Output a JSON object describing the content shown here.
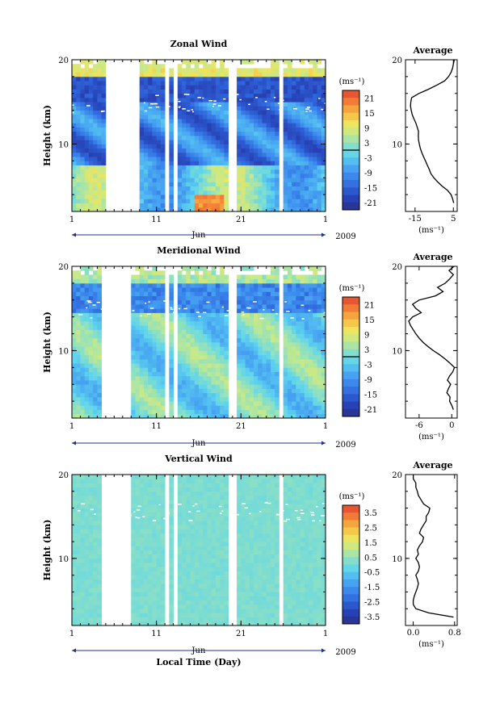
{
  "chart_data": [
    {
      "type": "heatmap",
      "title": "Zonal Wind",
      "ylabel": "Height (km)",
      "ylim": [
        2,
        20
      ],
      "y_ticks": [
        "10",
        "20"
      ],
      "x_ticks": [
        "1",
        "11",
        "21",
        "1"
      ],
      "x_month": "Jun",
      "x_year": "2009",
      "colorbar": {
        "unit": "(ms⁻¹)",
        "tick_labels": [
          "21",
          "15",
          "9",
          "3",
          "-3",
          "-9",
          "-15",
          "-21"
        ],
        "range": [
          -24,
          24
        ]
      },
      "data_gaps_days": [
        [
          5,
          9
        ],
        [
          12,
          12.3
        ],
        [
          13.2,
          13.5
        ],
        [
          19.8,
          20.3
        ],
        [
          25.5,
          25.8
        ]
      ],
      "average_profile": {
        "title": "Average",
        "xlabel": "(ms⁻¹)",
        "x_ticks": [
          "-15",
          "5"
        ],
        "xlim": [
          -20,
          7
        ],
        "y_ticks": [
          "10",
          "20"
        ],
        "height_km": [
          3.0,
          3.5,
          4.0,
          4.5,
          5.0,
          5.5,
          6.0,
          6.5,
          7.0,
          7.5,
          8.0,
          8.5,
          9.0,
          9.5,
          10.0,
          10.5,
          11.0,
          11.5,
          12.0,
          12.5,
          13.0,
          13.5,
          14.0,
          14.5,
          15.0,
          15.5,
          16.0,
          16.5,
          17.0,
          17.5,
          18.0,
          18.5,
          19.0,
          19.5,
          20.0
        ],
        "values": [
          5.2,
          4.6,
          3.8,
          2.0,
          -0.8,
          -3.2,
          -5.2,
          -6.8,
          -7.6,
          -8.6,
          -9.6,
          -10.6,
          -11.5,
          -12.3,
          -12.8,
          -13.2,
          -13.3,
          -13.2,
          -13.9,
          -14.6,
          -15.6,
          -16.5,
          -17.0,
          -17.4,
          -17.2,
          -16.8,
          -13.0,
          -8.0,
          -3.5,
          0.5,
          2.5,
          3.8,
          4.6,
          5.0,
          5.5
        ]
      }
    },
    {
      "type": "heatmap",
      "title": "Meridional Wind",
      "ylabel": "Height (km)",
      "ylim": [
        2,
        20
      ],
      "y_ticks": [
        "10",
        "20"
      ],
      "x_ticks": [
        "1",
        "11",
        "21",
        "1"
      ],
      "x_month": "Jun",
      "x_year": "2009",
      "colorbar": {
        "unit": "(ms⁻¹)",
        "tick_labels": [
          "21",
          "15",
          "9",
          "3",
          "-3",
          "-9",
          "-15",
          "-21"
        ],
        "range": [
          -24,
          24
        ]
      },
      "data_gaps_days": [
        [
          4.5,
          8
        ],
        [
          12,
          12.3
        ],
        [
          13.2,
          13.5
        ],
        [
          19.8,
          20.3
        ],
        [
          25.5,
          25.8
        ]
      ],
      "average_profile": {
        "title": "Average",
        "xlabel": "(ms⁻¹)",
        "x_ticks": [
          "-6",
          "0"
        ],
        "xlim": [
          -8.5,
          1
        ],
        "y_ticks": [
          "10",
          "20"
        ],
        "height_km": [
          3.0,
          3.5,
          4.0,
          4.5,
          5.0,
          5.5,
          6.0,
          6.5,
          7.0,
          7.5,
          8.0,
          8.5,
          9.0,
          9.5,
          10.0,
          10.5,
          11.0,
          11.5,
          12.0,
          12.5,
          13.0,
          13.5,
          14.0,
          14.5,
          15.0,
          15.5,
          16.0,
          16.5,
          17.0,
          17.5,
          18.0,
          18.5,
          19.0,
          19.5,
          20.0
        ],
        "values": [
          0.3,
          0.0,
          -0.4,
          -0.3,
          -0.9,
          -0.6,
          -0.2,
          -0.8,
          -0.4,
          0.2,
          0.5,
          -0.3,
          -1.2,
          -2.2,
          -3.4,
          -4.4,
          -5.3,
          -6.0,
          -6.6,
          -7.1,
          -7.6,
          -7.9,
          -7.2,
          -5.6,
          -6.6,
          -7.2,
          -6.0,
          -3.0,
          -1.6,
          -2.6,
          -1.2,
          -0.4,
          0.3,
          -0.5,
          0.4
        ]
      }
    },
    {
      "type": "heatmap",
      "title": "Vertical Wind",
      "ylabel": "Height (km)",
      "ylim": [
        2,
        20
      ],
      "y_ticks": [
        "10",
        "20"
      ],
      "x_ticks": [
        "1",
        "11",
        "21",
        "1"
      ],
      "x_month": "Jun",
      "x_year": "2009",
      "xlabel": "Local Time (Day)",
      "colorbar": {
        "unit": "(ms⁻¹)",
        "tick_labels": [
          "3.5",
          "2.5",
          "1.5",
          "0.5",
          "-0.5",
          "-1.5",
          "-2.5",
          "-3.5"
        ],
        "range": [
          -4,
          4
        ]
      },
      "data_gaps_days": [
        [
          4.5,
          8
        ],
        [
          12,
          12.3
        ],
        [
          13.2,
          13.5
        ],
        [
          19.8,
          20.3
        ],
        [
          25.5,
          25.8
        ]
      ],
      "average_profile": {
        "title": "Average",
        "xlabel": "(ms⁻¹)",
        "x_ticks": [
          "0.0",
          "0.8"
        ],
        "xlim": [
          -0.15,
          0.85
        ],
        "y_ticks": [
          "10",
          "20"
        ],
        "height_km": [
          3.0,
          3.5,
          4.0,
          4.5,
          5.0,
          5.5,
          6.0,
          6.5,
          7.0,
          7.5,
          8.0,
          8.5,
          9.0,
          9.5,
          10.0,
          10.5,
          11.0,
          11.5,
          12.0,
          12.5,
          13.0,
          13.5,
          14.0,
          14.5,
          15.0,
          15.5,
          16.0,
          16.5,
          17.0,
          17.5,
          18.0,
          18.5,
          19.0,
          19.5,
          20.0
        ],
        "values": [
          0.78,
          0.3,
          0.05,
          0.0,
          0.0,
          0.02,
          0.05,
          0.08,
          0.1,
          0.08,
          0.05,
          0.1,
          0.12,
          0.1,
          0.05,
          0.1,
          0.08,
          0.12,
          0.18,
          0.2,
          0.12,
          0.15,
          0.2,
          0.25,
          0.25,
          0.3,
          0.32,
          0.2,
          0.15,
          0.1,
          0.08,
          0.05,
          0.05,
          0.0,
          0.0
        ]
      }
    }
  ]
}
